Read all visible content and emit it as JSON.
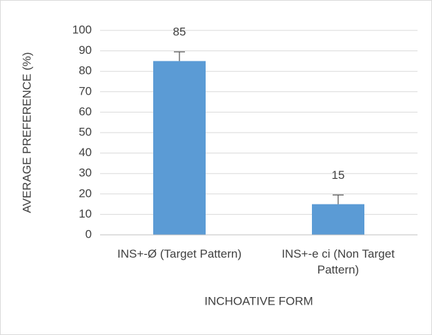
{
  "chart_data": {
    "type": "bar",
    "categories": [
      "INS+-Ø (Target Pattern)",
      "INS+-e ci (Non Target Pattern)"
    ],
    "series": [
      {
        "values": [
          85,
          15
        ],
        "errors": [
          4.5,
          4.5
        ],
        "color": "#5b9bd5"
      }
    ],
    "xlabel": "INCHOATIVE FORM",
    "ylabel": "AVERAGE PREFERENCE (%)",
    "ylim": [
      0,
      100
    ],
    "yticks": [
      0,
      10,
      20,
      30,
      40,
      50,
      60,
      70,
      80,
      90,
      100
    ],
    "grid": true
  }
}
